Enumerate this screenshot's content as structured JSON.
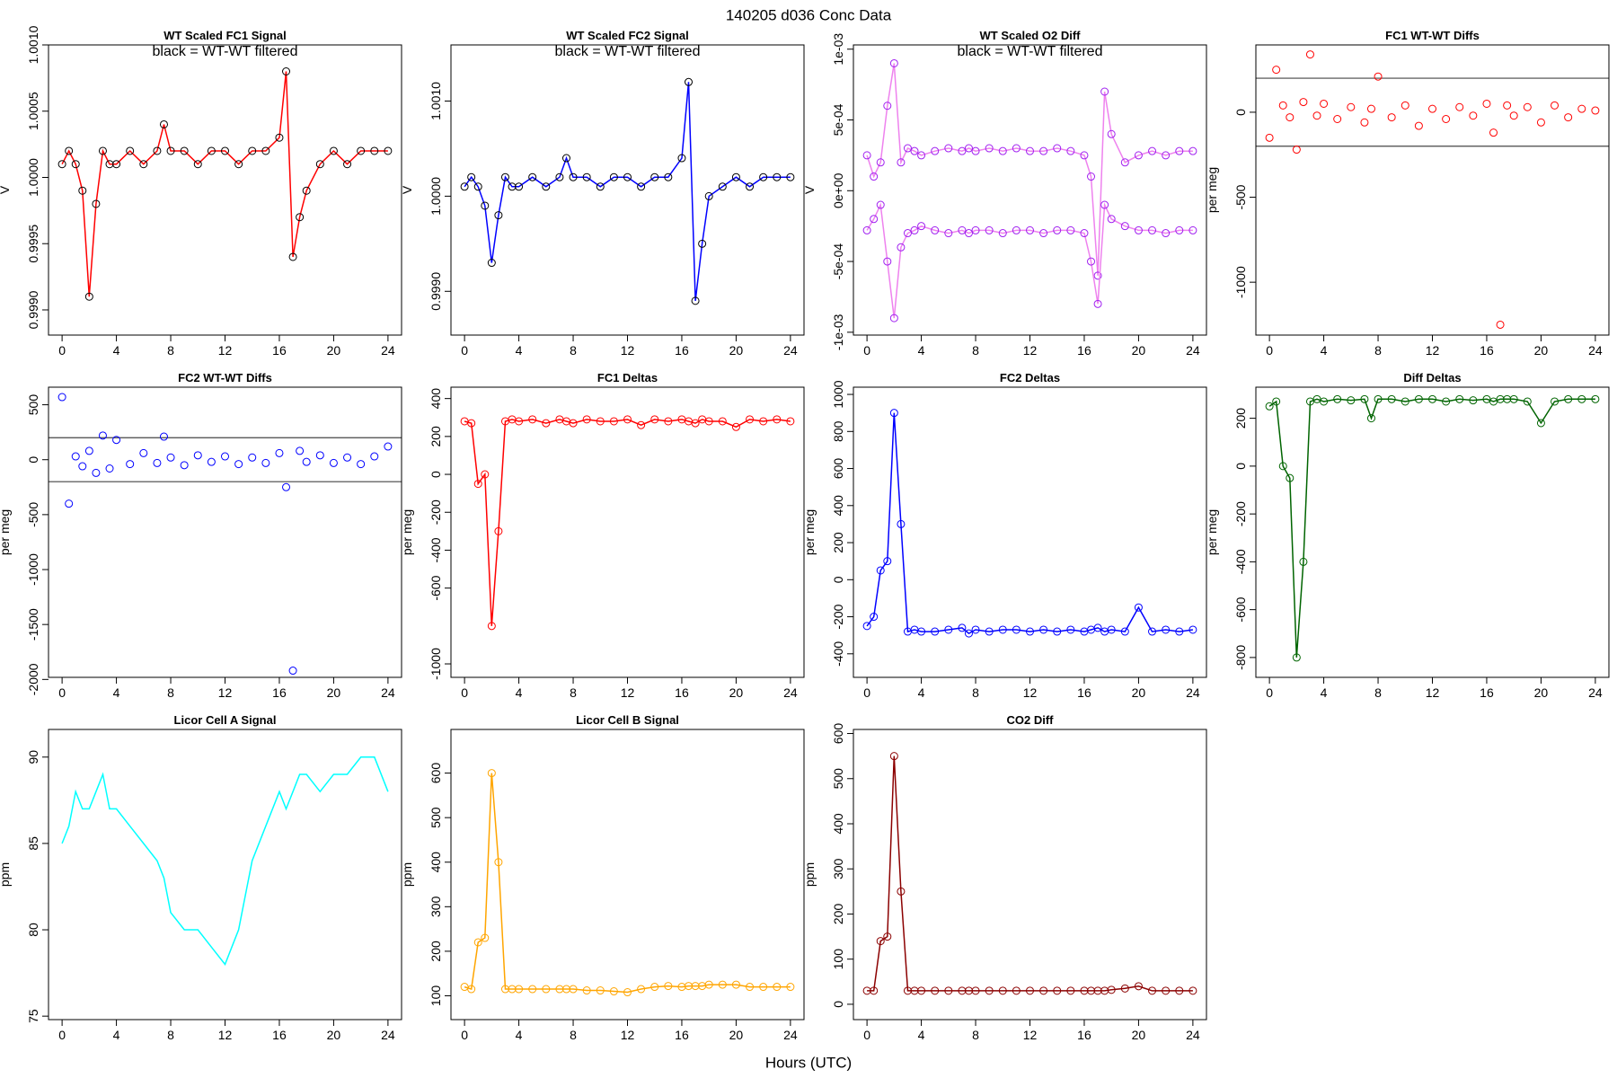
{
  "title": "140205    d036    Conc Data",
  "xlabel": "Hours (UTC)",
  "chart_data": [
    {
      "type": "line",
      "title": "WT Scaled FC1 Signal",
      "annotation": "black = WT-WT filtered",
      "ylabel": "V",
      "x": [
        0,
        0.5,
        1,
        1.5,
        2,
        2.5,
        3,
        3.5,
        4,
        5,
        6,
        7,
        7.5,
        8,
        9,
        10,
        11,
        12,
        13,
        14,
        15,
        16,
        16.5,
        17,
        17.5,
        18,
        19,
        20,
        21,
        22,
        23,
        24
      ],
      "xlim": [
        -1,
        25
      ],
      "xticks": [
        0,
        4,
        8,
        12,
        16,
        20,
        24
      ],
      "ylim": [
        0.99881,
        1.001
      ],
      "yticks": [
        {
          "value": 0.999,
          "label": "0.9990"
        },
        {
          "value": 0.9995,
          "label": "0.9995"
        },
        {
          "value": 1,
          "label": "1.0000"
        },
        {
          "value": 1.0005,
          "label": "1.0005"
        },
        {
          "value": 1.001,
          "label": "1.0010"
        }
      ],
      "markers": "circle",
      "marker_color": "#000000",
      "series": [
        {
          "color": "#ff0000",
          "values": [
            1.0001,
            1.0002,
            1.0001,
            0.9999,
            0.9991,
            0.9998,
            1.0002,
            1.0001,
            1.0001,
            1.0002,
            1.0001,
            1.0002,
            1.0004,
            1.0002,
            1.0002,
            1.0001,
            1.0002,
            1.0002,
            1.0001,
            1.0002,
            1.0002,
            1.0003,
            1.0008,
            0.9994,
            0.9997,
            0.9999,
            1.0001,
            1.0002,
            1.0001,
            1.0002,
            1.0002,
            1.0002
          ]
        }
      ]
    },
    {
      "type": "line",
      "title": "WT Scaled FC2 Signal",
      "annotation": "black = WT-WT filtered",
      "ylabel": "V",
      "x": [
        0,
        0.5,
        1,
        1.5,
        2,
        2.5,
        3,
        3.5,
        4,
        5,
        6,
        7,
        7.5,
        8,
        9,
        10,
        11,
        12,
        13,
        14,
        15,
        16,
        16.5,
        17,
        17.5,
        18,
        19,
        20,
        21,
        22,
        23,
        24
      ],
      "xlim": [
        -1,
        25
      ],
      "xticks": [
        0,
        4,
        8,
        12,
        16,
        20,
        24
      ],
      "ylim": [
        0.99854,
        1.00159
      ],
      "yticks": [
        {
          "value": 0.999,
          "label": "0.9990"
        },
        {
          "value": 1,
          "label": "1.0000"
        },
        {
          "value": 1.001,
          "label": "1.0010"
        }
      ],
      "markers": "circle",
      "marker_color": "#000000",
      "series": [
        {
          "color": "#0000ff",
          "values": [
            1.0001,
            1.0002,
            1.0001,
            0.9999,
            0.9993,
            0.9998,
            1.0002,
            1.0001,
            1.0001,
            1.0002,
            1.0001,
            1.0002,
            1.0004,
            1.0002,
            1.0002,
            1.0001,
            1.0002,
            1.0002,
            1.0001,
            1.0002,
            1.0002,
            1.0004,
            1.0012,
            0.9989,
            0.9995,
            1.0,
            1.0001,
            1.0002,
            1.0001,
            1.0002,
            1.0002,
            1.0002
          ]
        }
      ]
    },
    {
      "type": "line",
      "title": "WT Scaled O2 Diff",
      "annotation": "black = WT-WT filtered",
      "ylabel": "V",
      "x": [
        0,
        0.5,
        1,
        1.5,
        2,
        2.5,
        3,
        3.5,
        4,
        5,
        6,
        7,
        7.5,
        8,
        9,
        10,
        11,
        12,
        13,
        14,
        15,
        16,
        16.5,
        17,
        17.5,
        18,
        19,
        20,
        21,
        22,
        23,
        24
      ],
      "xlim": [
        -1,
        25
      ],
      "xticks": [
        0,
        4,
        8,
        12,
        16,
        20,
        24
      ],
      "ylim": [
        -0.00102,
        0.00103
      ],
      "yticks": [
        {
          "value": -0.001,
          "label": "-1e-03"
        },
        {
          "value": -0.0005,
          "label": "-5e-04"
        },
        {
          "value": 0,
          "label": "0e+00"
        },
        {
          "value": 0.0005,
          "label": "5e-04"
        },
        {
          "value": 0.001,
          "label": "1e-03"
        }
      ],
      "markers": "circle",
      "marker_color": "#a020f0",
      "series": [
        {
          "color": "#ee82ee",
          "values": [
            0.00025,
            0.0001,
            0.0002,
            0.0006,
            0.0009,
            0.0002,
            0.0003,
            0.00028,
            0.00025,
            0.00028,
            0.0003,
            0.00028,
            0.0003,
            0.00028,
            0.0003,
            0.00028,
            0.0003,
            0.00028,
            0.00028,
            0.0003,
            0.00028,
            0.00025,
            0.0001,
            -0.0006,
            0.0007,
            0.0004,
            0.0002,
            0.00025,
            0.00028,
            0.00025,
            0.00028,
            0.00028
          ]
        },
        {
          "color": "#ee82ee",
          "values": [
            -0.00028,
            -0.0002,
            -0.0001,
            -0.0005,
            -0.0009,
            -0.0004,
            -0.0003,
            -0.00028,
            -0.00025,
            -0.00028,
            -0.0003,
            -0.00028,
            -0.0003,
            -0.00028,
            -0.00028,
            -0.0003,
            -0.00028,
            -0.00028,
            -0.0003,
            -0.00028,
            -0.00028,
            -0.0003,
            -0.0005,
            -0.0008,
            -0.0001,
            -0.0002,
            -0.00025,
            -0.00028,
            -0.00028,
            -0.0003,
            -0.00028,
            -0.00028
          ]
        }
      ]
    },
    {
      "type": "scatter",
      "title": "FC1 WT-WT Diffs",
      "ylabel": "per meg",
      "x": [
        0,
        0.5,
        1,
        1.5,
        2,
        2.5,
        3,
        3.5,
        4,
        5,
        6,
        7,
        7.5,
        8,
        9,
        10,
        11,
        12,
        13,
        14,
        15,
        16,
        16.5,
        17,
        17.5,
        18,
        19,
        20,
        21,
        22,
        23,
        24
      ],
      "xlim": [
        -1,
        25
      ],
      "xticks": [
        0,
        4,
        8,
        12,
        16,
        20,
        24
      ],
      "ylim": [
        -1311,
        396
      ],
      "yticks": [
        -1000,
        -500,
        0
      ],
      "hlines": [
        200,
        -200
      ],
      "series": [
        {
          "color": "#ff0000",
          "values": [
            -150,
            250,
            40,
            -30,
            -220,
            60,
            340,
            -20,
            50,
            -40,
            30,
            -60,
            20,
            210,
            -30,
            40,
            -80,
            20,
            -40,
            30,
            -20,
            50,
            -120,
            -1250,
            40,
            -20,
            30,
            -60,
            40,
            -30,
            20,
            10
          ]
        }
      ]
    },
    {
      "type": "scatter",
      "title": "FC2 WT-WT Diffs",
      "ylabel": "per meg",
      "x": [
        0,
        0.5,
        1,
        1.5,
        2,
        2.5,
        3,
        3.5,
        4,
        5,
        6,
        7,
        7.5,
        8,
        9,
        10,
        11,
        12,
        13,
        14,
        15,
        16,
        16.5,
        17,
        17.5,
        18,
        19,
        20,
        21,
        22,
        23,
        24
      ],
      "xlim": [
        -1,
        25
      ],
      "xticks": [
        0,
        4,
        8,
        12,
        16,
        20,
        24
      ],
      "ylim": [
        -1981,
        660
      ],
      "yticks": [
        -2000,
        -1500,
        -1000,
        -500,
        0,
        500
      ],
      "hlines": [
        200,
        -200
      ],
      "series": [
        {
          "color": "#0000ff",
          "values": [
            570,
            -400,
            30,
            -60,
            80,
            -120,
            220,
            -80,
            180,
            -40,
            60,
            -30,
            210,
            20,
            -50,
            40,
            -20,
            30,
            -40,
            20,
            -30,
            60,
            -250,
            -1920,
            80,
            -20,
            40,
            -30,
            20,
            -40,
            30,
            120
          ]
        }
      ]
    },
    {
      "type": "line",
      "title": "FC1 Deltas",
      "ylabel": "per meg",
      "x": [
        0,
        0.5,
        1,
        1.5,
        2,
        2.5,
        3,
        3.5,
        4,
        5,
        6,
        7,
        7.5,
        8,
        9,
        10,
        11,
        12,
        13,
        14,
        15,
        16,
        16.5,
        17,
        17.5,
        18,
        19,
        20,
        21,
        22,
        23,
        24
      ],
      "xlim": [
        -1,
        25
      ],
      "xticks": [
        0,
        4,
        8,
        12,
        16,
        20,
        24
      ],
      "ylim": [
        -1071,
        460
      ],
      "yticks": [
        -1000,
        -600,
        -400,
        -200,
        0,
        200,
        400
      ],
      "markers": "circle",
      "series": [
        {
          "color": "#ff0000",
          "values": [
            280,
            270,
            -50,
            0,
            -800,
            -300,
            280,
            290,
            280,
            290,
            270,
            290,
            280,
            270,
            290,
            280,
            280,
            290,
            260,
            290,
            280,
            290,
            280,
            270,
            290,
            280,
            280,
            250,
            290,
            280,
            290,
            280
          ]
        }
      ]
    },
    {
      "type": "line",
      "title": "FC2 Deltas",
      "ylabel": "per meg",
      "x": [
        0,
        0.5,
        1,
        1.5,
        2,
        2.5,
        3,
        3.5,
        4,
        5,
        6,
        7,
        7.5,
        8,
        9,
        10,
        11,
        12,
        13,
        14,
        15,
        16,
        16.5,
        17,
        17.5,
        18,
        19,
        20,
        21,
        22,
        23,
        24
      ],
      "xlim": [
        -1,
        25
      ],
      "xticks": [
        0,
        4,
        8,
        12,
        16,
        20,
        24
      ],
      "ylim": [
        -527,
        1039
      ],
      "yticks": [
        -400,
        -200,
        0,
        200,
        400,
        600,
        800,
        1000
      ],
      "markers": "circle",
      "series": [
        {
          "color": "#0000ff",
          "values": [
            -250,
            -200,
            50,
            100,
            900,
            300,
            -280,
            -270,
            -280,
            -280,
            -270,
            -260,
            -290,
            -270,
            -280,
            -270,
            -270,
            -280,
            -270,
            -280,
            -270,
            -280,
            -270,
            -260,
            -280,
            -270,
            -280,
            -150,
            -280,
            -270,
            -280,
            -270
          ]
        }
      ]
    },
    {
      "type": "line",
      "title": "Diff Deltas",
      "ylabel": "per meg",
      "x": [
        0,
        0.5,
        1,
        1.5,
        2,
        2.5,
        3,
        3.5,
        4,
        5,
        6,
        7,
        7.5,
        8,
        9,
        10,
        11,
        12,
        13,
        14,
        15,
        16,
        16.5,
        17,
        17.5,
        18,
        19,
        20,
        21,
        22,
        23,
        24
      ],
      "xlim": [
        -1,
        25
      ],
      "xticks": [
        0,
        4,
        8,
        12,
        16,
        20,
        24
      ],
      "ylim": [
        -883,
        330
      ],
      "yticks": [
        -800,
        -600,
        -400,
        -200,
        0,
        200
      ],
      "markers": "circle",
      "series": [
        {
          "color": "#006400",
          "values": [
            250,
            270,
            0,
            -50,
            -800,
            -400,
            270,
            280,
            270,
            280,
            275,
            280,
            200,
            280,
            280,
            270,
            280,
            280,
            270,
            280,
            275,
            280,
            270,
            280,
            280,
            280,
            270,
            180,
            270,
            280,
            280,
            280
          ]
        }
      ]
    },
    {
      "type": "line",
      "title": "Licor Cell A Signal",
      "ylabel": "ppm",
      "x": [
        0,
        0.5,
        1,
        1.5,
        2,
        2.5,
        3,
        3.5,
        4,
        5,
        6,
        7,
        7.5,
        8,
        9,
        10,
        11,
        12,
        13,
        14,
        15,
        16,
        16.5,
        17,
        17.5,
        18,
        19,
        20,
        21,
        22,
        23,
        24
      ],
      "xlim": [
        -1,
        25
      ],
      "xticks": [
        0,
        4,
        8,
        12,
        16,
        20,
        24
      ],
      "ylim": [
        74.8,
        91.6
      ],
      "yticks": [
        75,
        80,
        85,
        90
      ],
      "series": [
        {
          "color": "#00ffff",
          "values": [
            85,
            86,
            88,
            87,
            87,
            88,
            89,
            87,
            87,
            86,
            85,
            84,
            83,
            81,
            80,
            80,
            79,
            78,
            80,
            84,
            86,
            88,
            87,
            88,
            89,
            89,
            88,
            89,
            89,
            90,
            90,
            88
          ]
        }
      ]
    },
    {
      "type": "line",
      "title": "Licor Cell B Signal",
      "ylabel": "ppm",
      "x": [
        0,
        0.5,
        1,
        1.5,
        2,
        2.5,
        3,
        3.5,
        4,
        5,
        6,
        7,
        7.5,
        8,
        9,
        10,
        11,
        12,
        13,
        14,
        15,
        16,
        16.5,
        17,
        17.5,
        18,
        19,
        20,
        21,
        22,
        23,
        24
      ],
      "xlim": [
        -1,
        25
      ],
      "xticks": [
        0,
        4,
        8,
        12,
        16,
        20,
        24
      ],
      "ylim": [
        46.5,
        698
      ],
      "yticks": [
        100,
        200,
        300,
        400,
        500,
        600
      ],
      "markers": "circle",
      "series": [
        {
          "color": "#ffa500",
          "values": [
            120,
            115,
            220,
            230,
            600,
            400,
            115,
            115,
            115,
            115,
            115,
            115,
            115,
            115,
            112,
            112,
            110,
            108,
            115,
            120,
            122,
            120,
            122,
            122,
            122,
            125,
            125,
            125,
            120,
            120,
            120,
            120
          ]
        }
      ]
    },
    {
      "type": "line",
      "title": "CO2 Diff",
      "ylabel": "ppm",
      "x": [
        0,
        0.5,
        1,
        1.5,
        2,
        2.5,
        3,
        3.5,
        4,
        5,
        6,
        7,
        7.5,
        8,
        9,
        10,
        11,
        12,
        13,
        14,
        15,
        16,
        16.5,
        17,
        17.5,
        18,
        19,
        20,
        21,
        22,
        23,
        24
      ],
      "xlim": [
        -1,
        25
      ],
      "xticks": [
        0,
        4,
        8,
        12,
        16,
        20,
        24
      ],
      "ylim": [
        -34,
        609
      ],
      "yticks": [
        0,
        100,
        200,
        300,
        400,
        500,
        600
      ],
      "markers": "circle",
      "series": [
        {
          "color": "#8b0000",
          "values": [
            30,
            30,
            140,
            150,
            550,
            250,
            30,
            30,
            30,
            30,
            30,
            30,
            30,
            30,
            30,
            30,
            30,
            30,
            30,
            30,
            30,
            30,
            30,
            30,
            30,
            32,
            35,
            40,
            30,
            30,
            30,
            30
          ]
        }
      ]
    }
  ]
}
